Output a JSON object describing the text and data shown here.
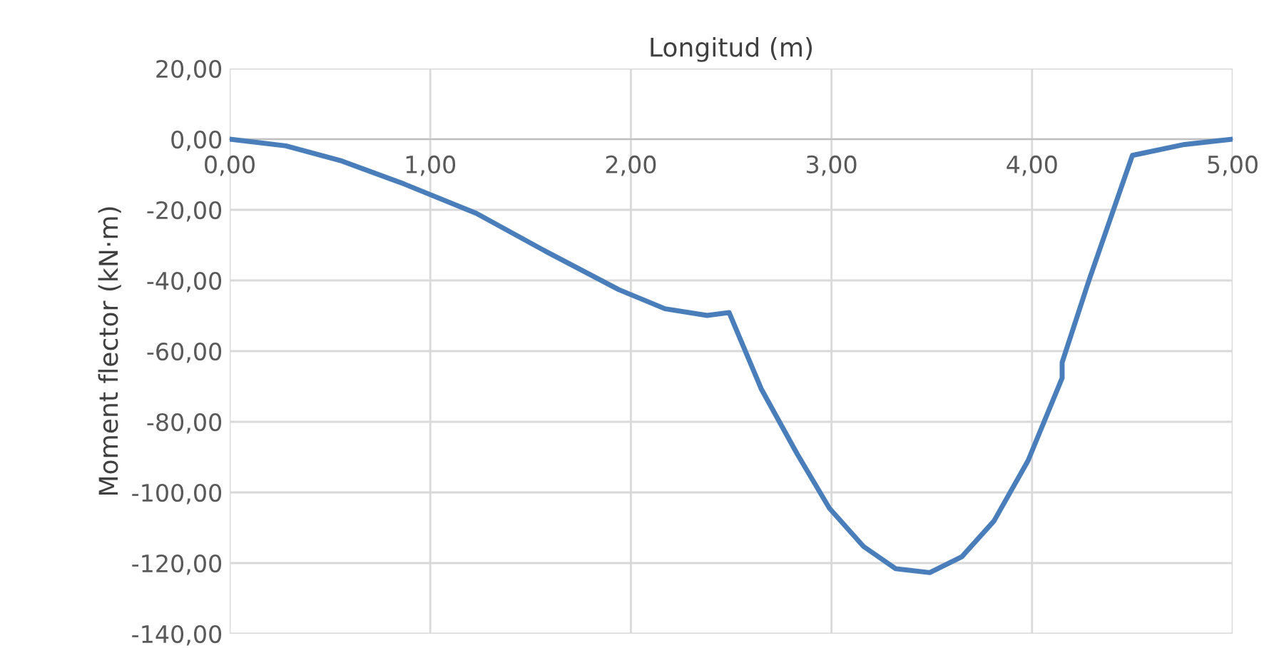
{
  "chart_data": {
    "type": "line",
    "xlabel": "Longitud (m)",
    "ylabel": "Moment flector (kN·m)",
    "x": [
      0,
      0.28,
      0.56,
      0.87,
      1.23,
      1.58,
      1.94,
      2.17,
      2.38,
      2.49,
      2.65,
      2.83,
      2.99,
      3.16,
      3.32,
      3.49,
      3.65,
      3.81,
      3.98,
      4.15,
      4.15,
      4.28,
      4.5,
      4.76,
      5
    ],
    "series": [
      {
        "color": "#4a7ebb",
        "values": [
          0,
          -1.9,
          -6.2,
          -12.7,
          -21,
          -31.9,
          -42.6,
          -48,
          -49.9,
          -49.1,
          -70.7,
          -89.2,
          -104.5,
          -115.3,
          -121.6,
          -122.7,
          -118.2,
          -108.1,
          -91,
          -67.6,
          -63.2,
          -40.6,
          -4.6,
          -1.5,
          0
        ]
      }
    ],
    "xlim": [
      0,
      5
    ],
    "xticks": [
      {
        "value": 0,
        "label": "0,00"
      },
      {
        "value": 1,
        "label": "1,00"
      },
      {
        "value": 2,
        "label": "2,00"
      },
      {
        "value": 3,
        "label": "3,00"
      },
      {
        "value": 4,
        "label": "4,00"
      },
      {
        "value": 5,
        "label": "5,00"
      }
    ],
    "ylim": [
      -140,
      20
    ],
    "yticks": [
      {
        "value": -140,
        "label": "-140,00"
      },
      {
        "value": -120,
        "label": "-120,00"
      },
      {
        "value": -100,
        "label": "-100,00"
      },
      {
        "value": -80,
        "label": "-80,00"
      },
      {
        "value": -60,
        "label": "-60,00"
      },
      {
        "value": -40,
        "label": "-40,00"
      },
      {
        "value": -20,
        "label": "-20,00"
      },
      {
        "value": 0,
        "label": "0,00"
      },
      {
        "value": 20,
        "label": "20,00"
      }
    ],
    "grid": true,
    "marker": "none",
    "line_style": "solid",
    "legend": false
  }
}
